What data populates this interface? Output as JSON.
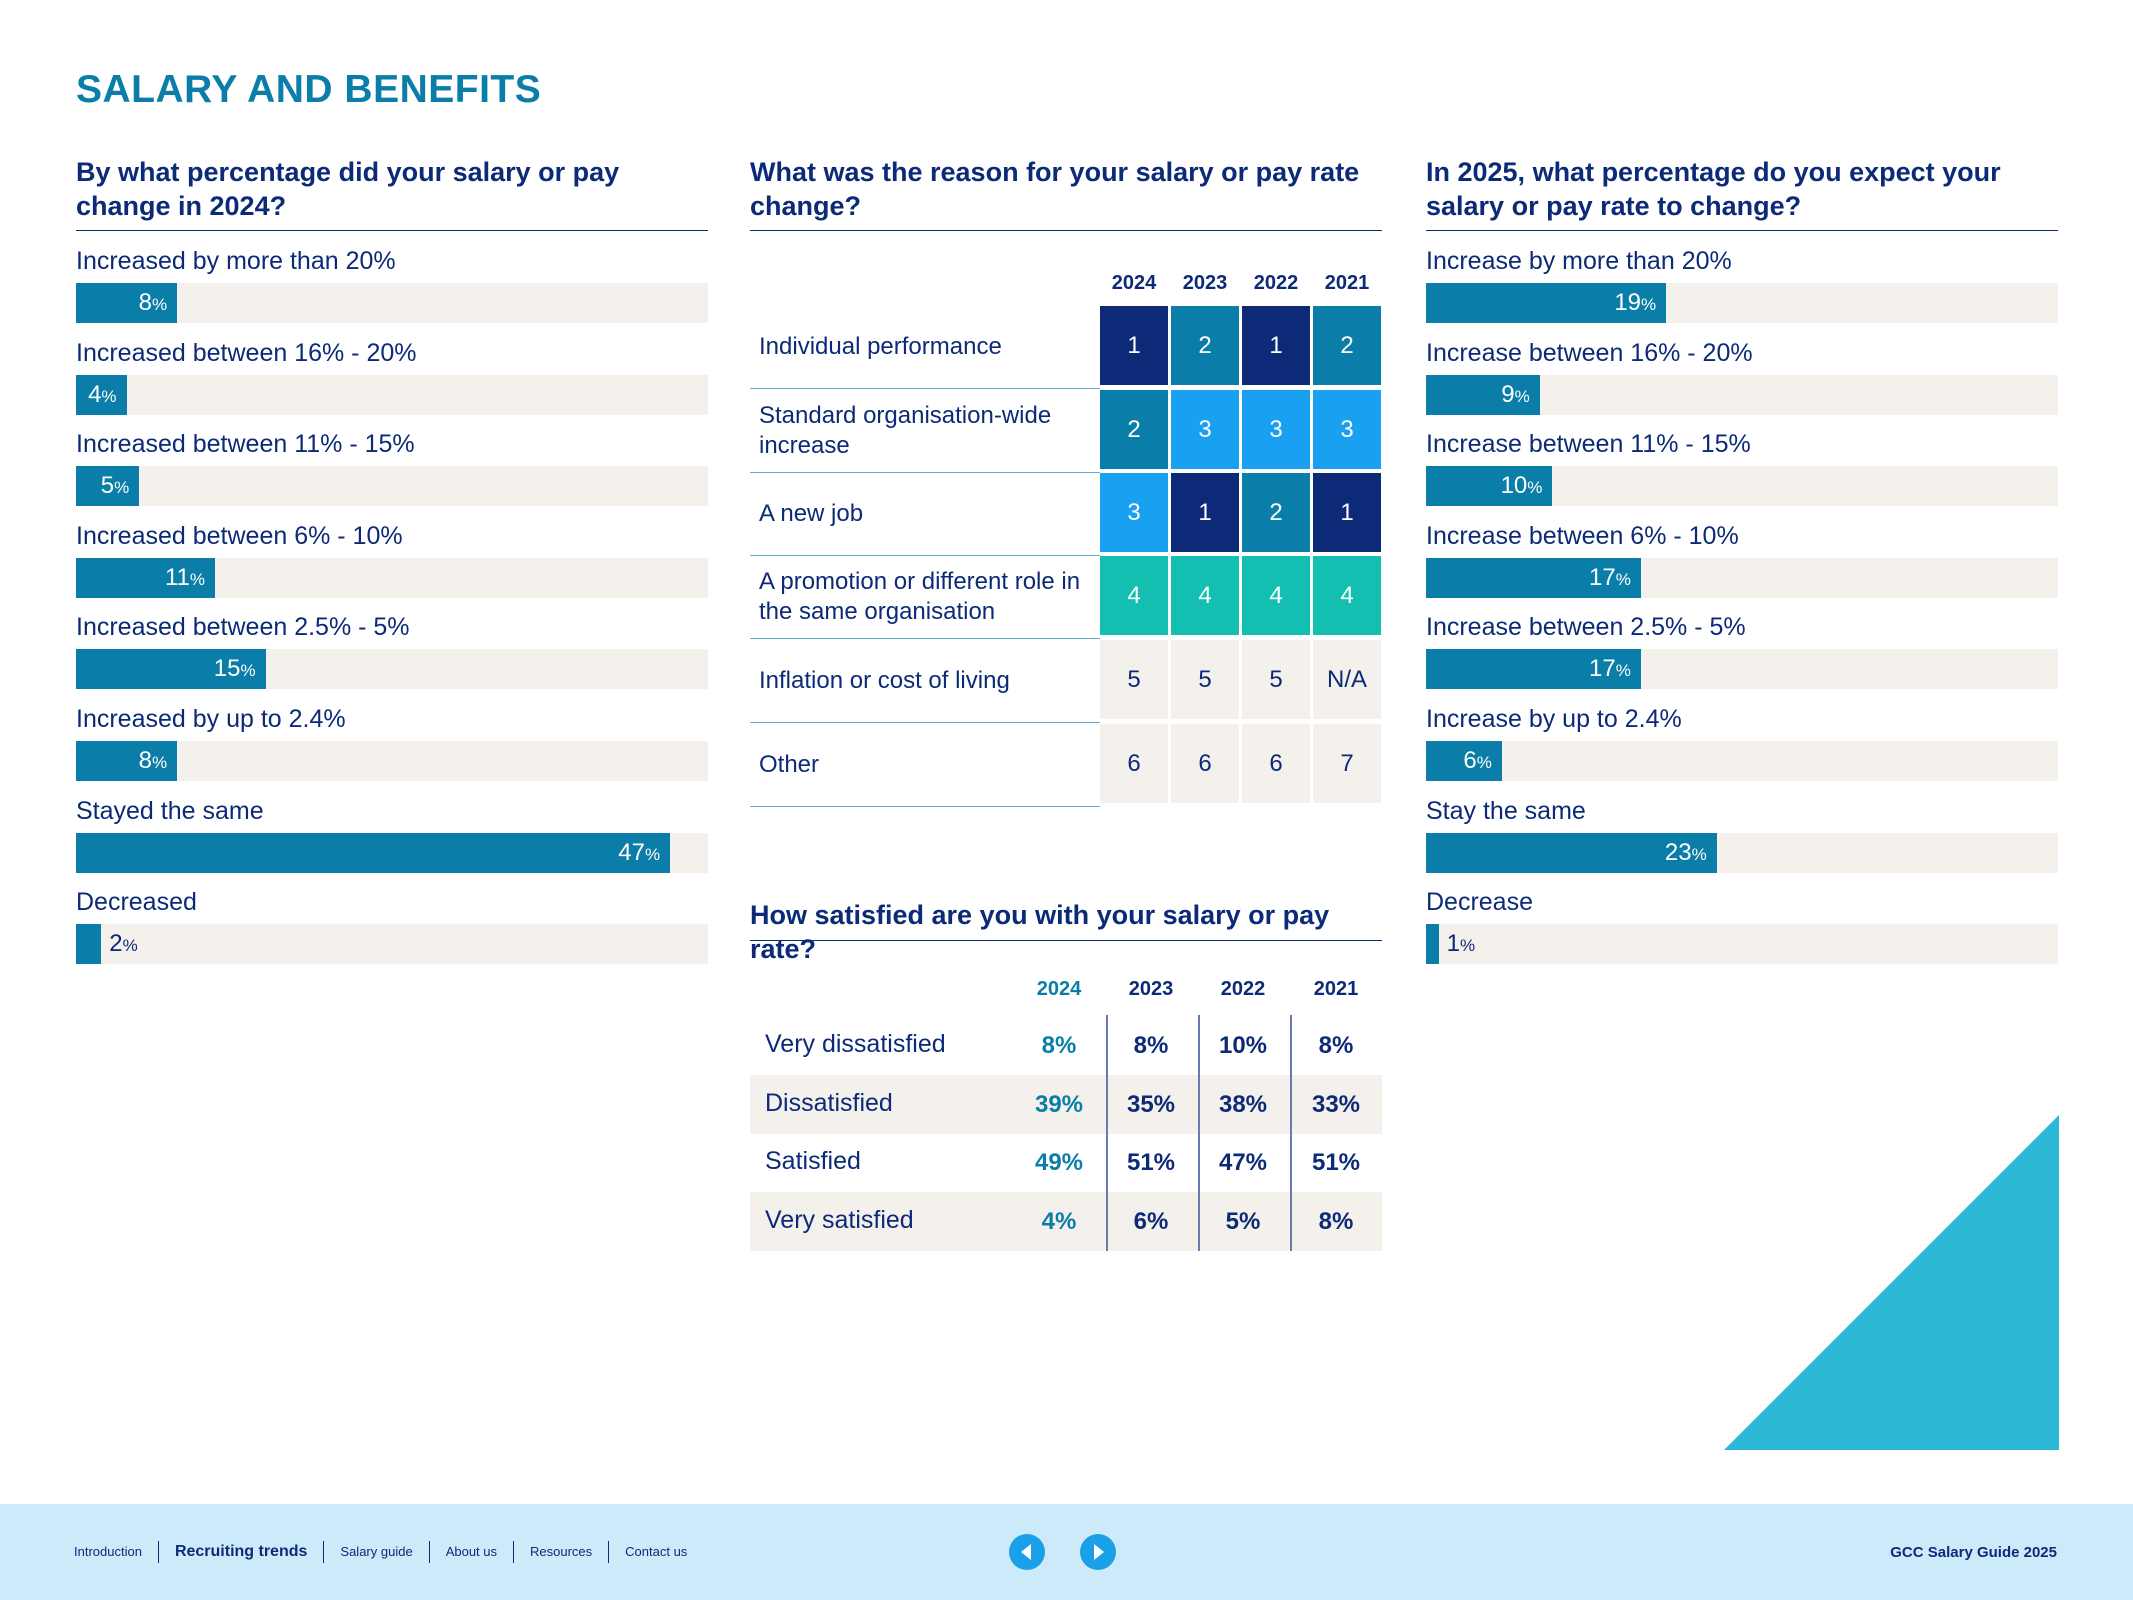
{
  "page": {
    "title": "SALARY AND BENEFITS"
  },
  "colors": {
    "brand_blue": "#0a7ea8",
    "navy": "#0c2a78",
    "rank_1": "#0c2a78",
    "rank_2": "#0a7ea8",
    "rank_3": "#1aa0f0",
    "rank_4": "#13bfb0",
    "rank_neutral": "#f4f0eb",
    "track": "#f4f0eb",
    "accent_triangle": "#2cb7d6",
    "footer_bg": "#cdeafa"
  },
  "chart_data": [
    {
      "type": "bar",
      "orientation": "horizontal",
      "title": "By what percentage did your salary or pay change in 2024?",
      "categories": [
        "Increased by more than 20%",
        "Increased between 16% - 20%",
        "Increased between 11% - 15%",
        "Increased between 6% - 10%",
        "Increased between 2.5% - 5%",
        "Increased by up to 2.4%",
        "Stayed the same",
        "Decreased"
      ],
      "values": [
        8,
        4,
        5,
        11,
        15,
        8,
        47,
        2
      ],
      "unit": "%",
      "xlim": [
        0,
        50
      ]
    },
    {
      "type": "table",
      "title": "What was the reason for your salary or pay rate change?",
      "columns": [
        "2024",
        "2023",
        "2022",
        "2021"
      ],
      "rows": [
        {
          "label": "Individual performance",
          "values": [
            "1",
            "2",
            "1",
            "2"
          ]
        },
        {
          "label": "Standard organisation-wide increase",
          "values": [
            "2",
            "3",
            "3",
            "3"
          ]
        },
        {
          "label": "A new job",
          "values": [
            "3",
            "1",
            "2",
            "1"
          ]
        },
        {
          "label": "A promotion or different role in the same organisation",
          "values": [
            "4",
            "4",
            "4",
            "4"
          ]
        },
        {
          "label": "Inflation or cost of living",
          "values": [
            "5",
            "5",
            "5",
            "N/A"
          ]
        },
        {
          "label": "Other",
          "values": [
            "6",
            "6",
            "6",
            "7"
          ]
        }
      ]
    },
    {
      "type": "bar",
      "orientation": "horizontal",
      "title": "In 2025, what percentage do you expect your salary or pay rate to change?",
      "categories": [
        "Increase by more than 20%",
        "Increase between 16% - 20%",
        "Increase between 11% - 15%",
        "Increase between 6% - 10%",
        "Increase between 2.5% - 5%",
        "Increase by up to 2.4%",
        "Stay the same",
        "Decrease"
      ],
      "values": [
        19,
        9,
        10,
        17,
        17,
        6,
        23,
        1
      ],
      "unit": "%",
      "xlim": [
        0,
        50
      ]
    },
    {
      "type": "table",
      "title": "How satisfied are you with your salary or pay rate?",
      "columns": [
        "2024",
        "2023",
        "2022",
        "2021"
      ],
      "rows": [
        {
          "label": "Very dissatisfied",
          "values": [
            "8%",
            "8%",
            "10%",
            "8%"
          ]
        },
        {
          "label": "Dissatisfied",
          "values": [
            "39%",
            "35%",
            "38%",
            "33%"
          ]
        },
        {
          "label": "Satisfied",
          "values": [
            "49%",
            "51%",
            "47%",
            "51%"
          ]
        },
        {
          "label": "Very satisfied",
          "values": [
            "4%",
            "6%",
            "5%",
            "8%"
          ]
        }
      ]
    }
  ],
  "footer": {
    "nav": [
      "Introduction",
      "Recruiting trends",
      "Salary guide",
      "About us",
      "Resources",
      "Contact us"
    ],
    "active_nav": "Recruiting trends",
    "brand": "GCC Salary Guide 2025",
    "prev_icon": "arrow-left-icon",
    "next_icon": "arrow-right-icon"
  }
}
